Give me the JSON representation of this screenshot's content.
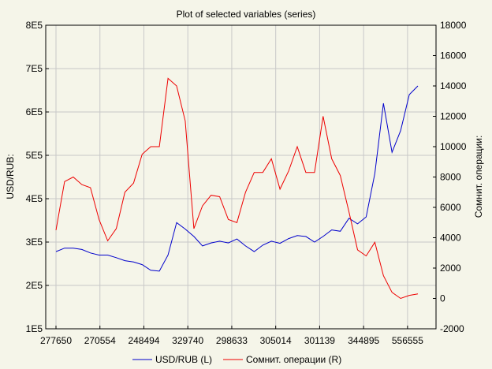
{
  "chart_data": {
    "type": "line",
    "title": "Plot of selected variables (series)",
    "ylabel_left": "USD/RUB:",
    "ylabel_right": "Сомнит. операции:",
    "x_tick_labels": [
      "277650",
      "270554",
      "248494",
      "329740",
      "298633",
      "305014",
      "301139",
      "344895",
      "556555"
    ],
    "y_left": {
      "ticks": [
        "1E5",
        "2E5",
        "3E5",
        "4E5",
        "5E5",
        "6E5",
        "7E5",
        "8E5"
      ],
      "range": [
        100000,
        800000
      ]
    },
    "y_right": {
      "ticks": [
        "-2000",
        "0",
        "2000",
        "4000",
        "6000",
        "8000",
        "10000",
        "12000",
        "14000",
        "16000",
        "18000"
      ],
      "range": [
        -2000,
        18000
      ]
    },
    "grid": true,
    "legend_position": "bottom",
    "series": [
      {
        "name": "USD/RUB (L)",
        "axis": "left",
        "color": "#0000cc",
        "values": [
          278000,
          286000,
          286000,
          283000,
          275000,
          270000,
          270000,
          264000,
          257000,
          254000,
          248000,
          235000,
          233000,
          270000,
          345000,
          330000,
          313000,
          291000,
          298000,
          302000,
          298000,
          307000,
          291000,
          278000,
          293000,
          302000,
          297000,
          308000,
          315000,
          313000,
          300000,
          313000,
          328000,
          325000,
          355000,
          342000,
          358000,
          458000,
          620000,
          507000,
          557000,
          640000,
          660000
        ]
      },
      {
        "name": "Сомнит. операции (R)",
        "axis": "right",
        "color": "#ee0000",
        "values": [
          4500,
          7700,
          8000,
          7500,
          7300,
          5200,
          3800,
          4600,
          7000,
          7600,
          9500,
          10000,
          10000,
          14500,
          14000,
          11700,
          4600,
          6100,
          6800,
          6700,
          5200,
          5000,
          7000,
          8300,
          8300,
          9200,
          7200,
          8400,
          10000,
          8300,
          8300,
          12000,
          9200,
          8100,
          5700,
          3200,
          2800,
          3700,
          1500,
          400,
          0,
          200,
          300
        ]
      }
    ]
  }
}
